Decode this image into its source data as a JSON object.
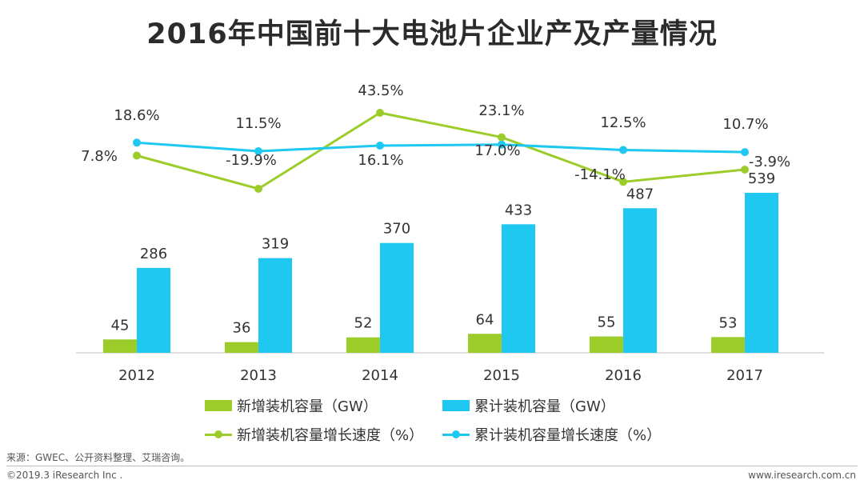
{
  "title": "2016年中国前十大电池片企业产及产量情况",
  "chart_data": {
    "type": "bar+line",
    "categories": [
      "2012",
      "2013",
      "2014",
      "2015",
      "2016",
      "2017"
    ],
    "bar_series": [
      {
        "name": "新增装机容量（GW）",
        "values": [
          45,
          36,
          52,
          64,
          55,
          53
        ],
        "labels": [
          "45",
          "36",
          "52",
          "64",
          "55",
          "53"
        ],
        "color": "#9ccc2a"
      },
      {
        "name": "累计装机容量（GW）",
        "values": [
          286,
          319,
          370,
          433,
          487,
          539
        ],
        "labels": [
          "286",
          "319",
          "370",
          "433",
          "487",
          "539"
        ],
        "color": "#1ec8f0"
      }
    ],
    "line_series": [
      {
        "name": "新增装机容量增长速度（%）",
        "values": [
          7.8,
          -19.9,
          43.5,
          23.1,
          -14.1,
          -3.9
        ],
        "labels": [
          "7.8%",
          "-19.9%",
          "43.5%",
          "23.1%",
          "-14.1%",
          "-3.9%"
        ],
        "color": "#9ccc2a"
      },
      {
        "name": "累计装机容量增长速度（%）",
        "values": [
          18.6,
          11.5,
          16.1,
          17.0,
          12.5,
          10.7
        ],
        "labels": [
          "18.6%",
          "11.5%",
          "16.1%",
          "17.0%",
          "12.5%",
          "10.7%"
        ],
        "color": "#1ec8f0"
      }
    ],
    "bar_ylim": [
      0,
      560
    ],
    "line_ylim": [
      -25,
      50
    ],
    "xlabel": "",
    "ylabel": "",
    "grid": false,
    "legend": "bottom"
  },
  "source": "来源：GWEC、公开资料整理、艾瑞咨询。",
  "footer": {
    "copyright": "©2019.3 iResearch Inc .",
    "site": "www.iresearch.com.cn"
  }
}
